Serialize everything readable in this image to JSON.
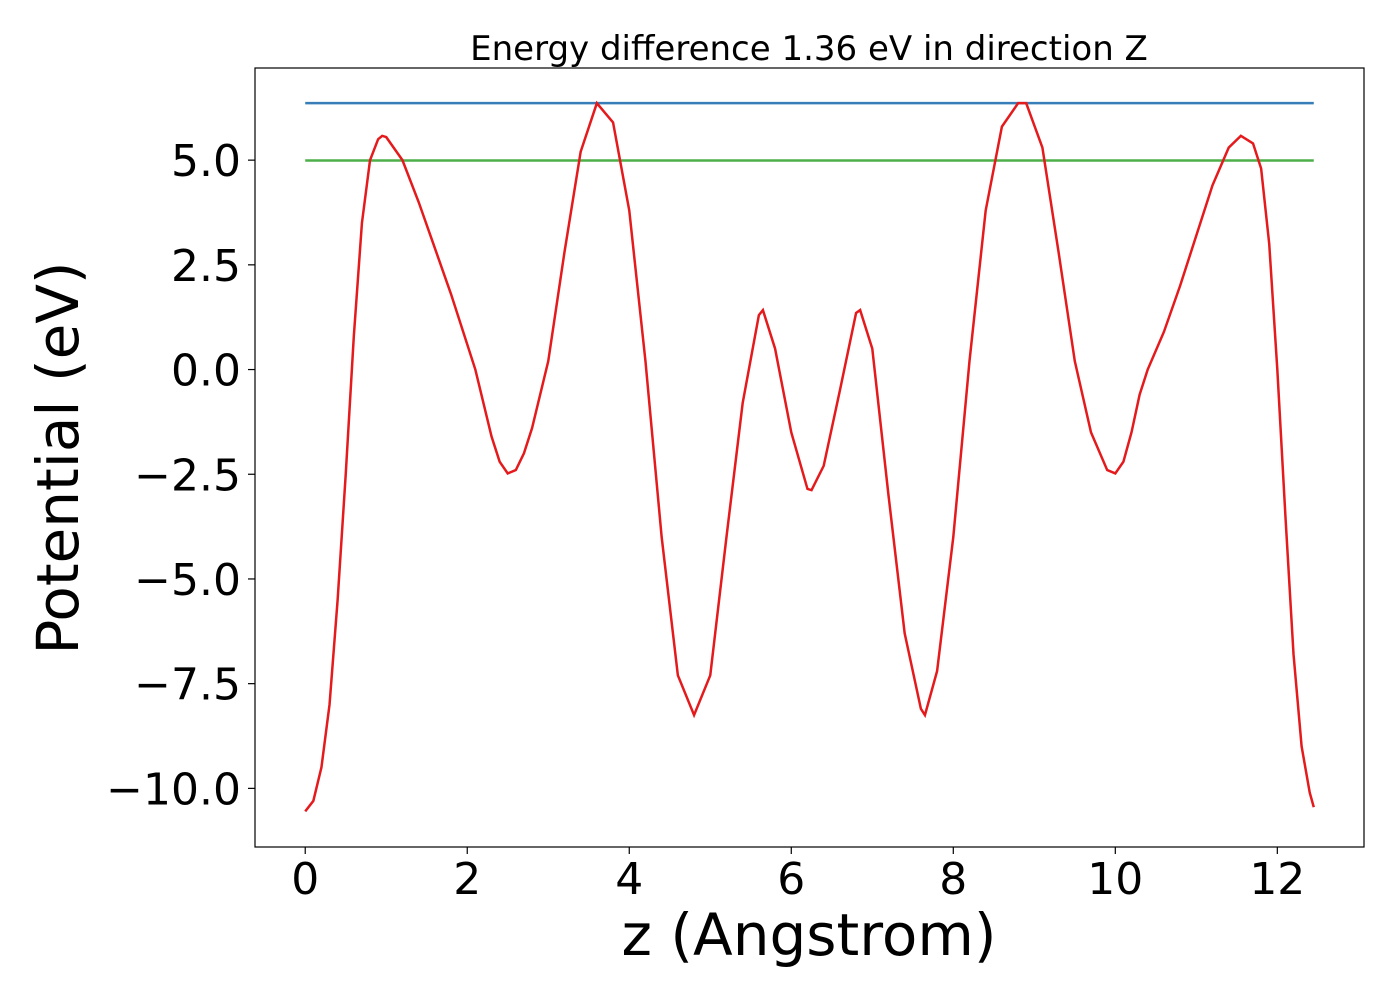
{
  "chart_data": {
    "type": "line",
    "title": "Energy difference 1.36 eV in direction Z",
    "xlabel": "z (Angstrom)",
    "ylabel": "Potential (eV)",
    "xlim": [
      -0.62,
      13.07
    ],
    "ylim": [
      -11.4,
      7.2
    ],
    "xticks": [
      0,
      2,
      4,
      6,
      8,
      10,
      12
    ],
    "yticks": [
      {
        "value": -10,
        "label": "−10.0"
      },
      {
        "value": -7.5,
        "label": "−7.5"
      },
      {
        "value": -5,
        "label": "−5.0"
      },
      {
        "value": -2.5,
        "label": "−2.5"
      },
      {
        "value": 0,
        "label": "0.0"
      },
      2.5,
      {
        "value": 5,
        "label": "5.0"
      }
    ],
    "grid": false,
    "series": [
      {
        "color": "#e41a1c",
        "x": [
          0,
          0.1,
          0.2,
          0.3,
          0.4,
          0.5,
          0.6,
          0.7,
          0.8,
          0.9,
          0.95,
          1.0,
          1.2,
          1.4,
          1.6,
          1.8,
          2.0,
          2.1,
          2.2,
          2.3,
          2.4,
          2.5,
          2.6,
          2.7,
          2.8,
          3.0,
          3.2,
          3.4,
          3.6,
          3.8,
          4.0,
          4.2,
          4.4,
          4.6,
          4.8,
          5.0,
          5.2,
          5.4,
          5.6,
          5.65,
          5.8,
          6.0,
          6.2,
          6.25,
          6.4,
          6.6,
          6.8,
          6.85,
          7.0,
          7.2,
          7.4,
          7.6,
          7.65,
          7.8,
          8.0,
          8.2,
          8.4,
          8.6,
          8.8,
          8.9,
          9.1,
          9.3,
          9.5,
          9.7,
          9.9,
          10.0,
          10.1,
          10.2,
          10.3,
          10.4,
          10.6,
          10.8,
          11.0,
          11.2,
          11.4,
          11.55,
          11.7,
          11.8,
          11.9,
          12.0,
          12.1,
          12.2,
          12.3,
          12.4,
          12.45
        ],
        "values": [
          -10.55,
          -10.3,
          -9.5,
          -8.0,
          -5.5,
          -2.5,
          0.8,
          3.5,
          5.0,
          5.5,
          5.58,
          5.55,
          5.0,
          4.0,
          2.9,
          1.8,
          0.6,
          0.0,
          -0.8,
          -1.6,
          -2.2,
          -2.48,
          -2.4,
          -2.0,
          -1.4,
          0.2,
          2.8,
          5.2,
          6.36,
          5.9,
          3.8,
          0.2,
          -4.0,
          -7.3,
          -8.25,
          -7.3,
          -4.0,
          -0.8,
          1.3,
          1.42,
          0.5,
          -1.5,
          -2.85,
          -2.88,
          -2.3,
          -0.5,
          1.35,
          1.42,
          0.5,
          -3.0,
          -6.3,
          -8.1,
          -8.25,
          -7.2,
          -4.0,
          0.2,
          3.8,
          5.8,
          6.36,
          6.36,
          5.3,
          2.8,
          0.2,
          -1.5,
          -2.4,
          -2.48,
          -2.2,
          -1.5,
          -0.6,
          0.0,
          0.9,
          2.0,
          3.2,
          4.4,
          5.3,
          5.58,
          5.4,
          4.8,
          3.0,
          0.0,
          -3.5,
          -6.8,
          -9.0,
          -10.1,
          -10.45
        ]
      },
      {
        "color": "#377eb8",
        "x": [
          0,
          12.45
        ],
        "values": [
          6.36,
          6.36
        ]
      },
      {
        "color": "#4daf4a",
        "x": [
          0,
          12.45
        ],
        "values": [
          4.99,
          4.99
        ]
      }
    ]
  }
}
